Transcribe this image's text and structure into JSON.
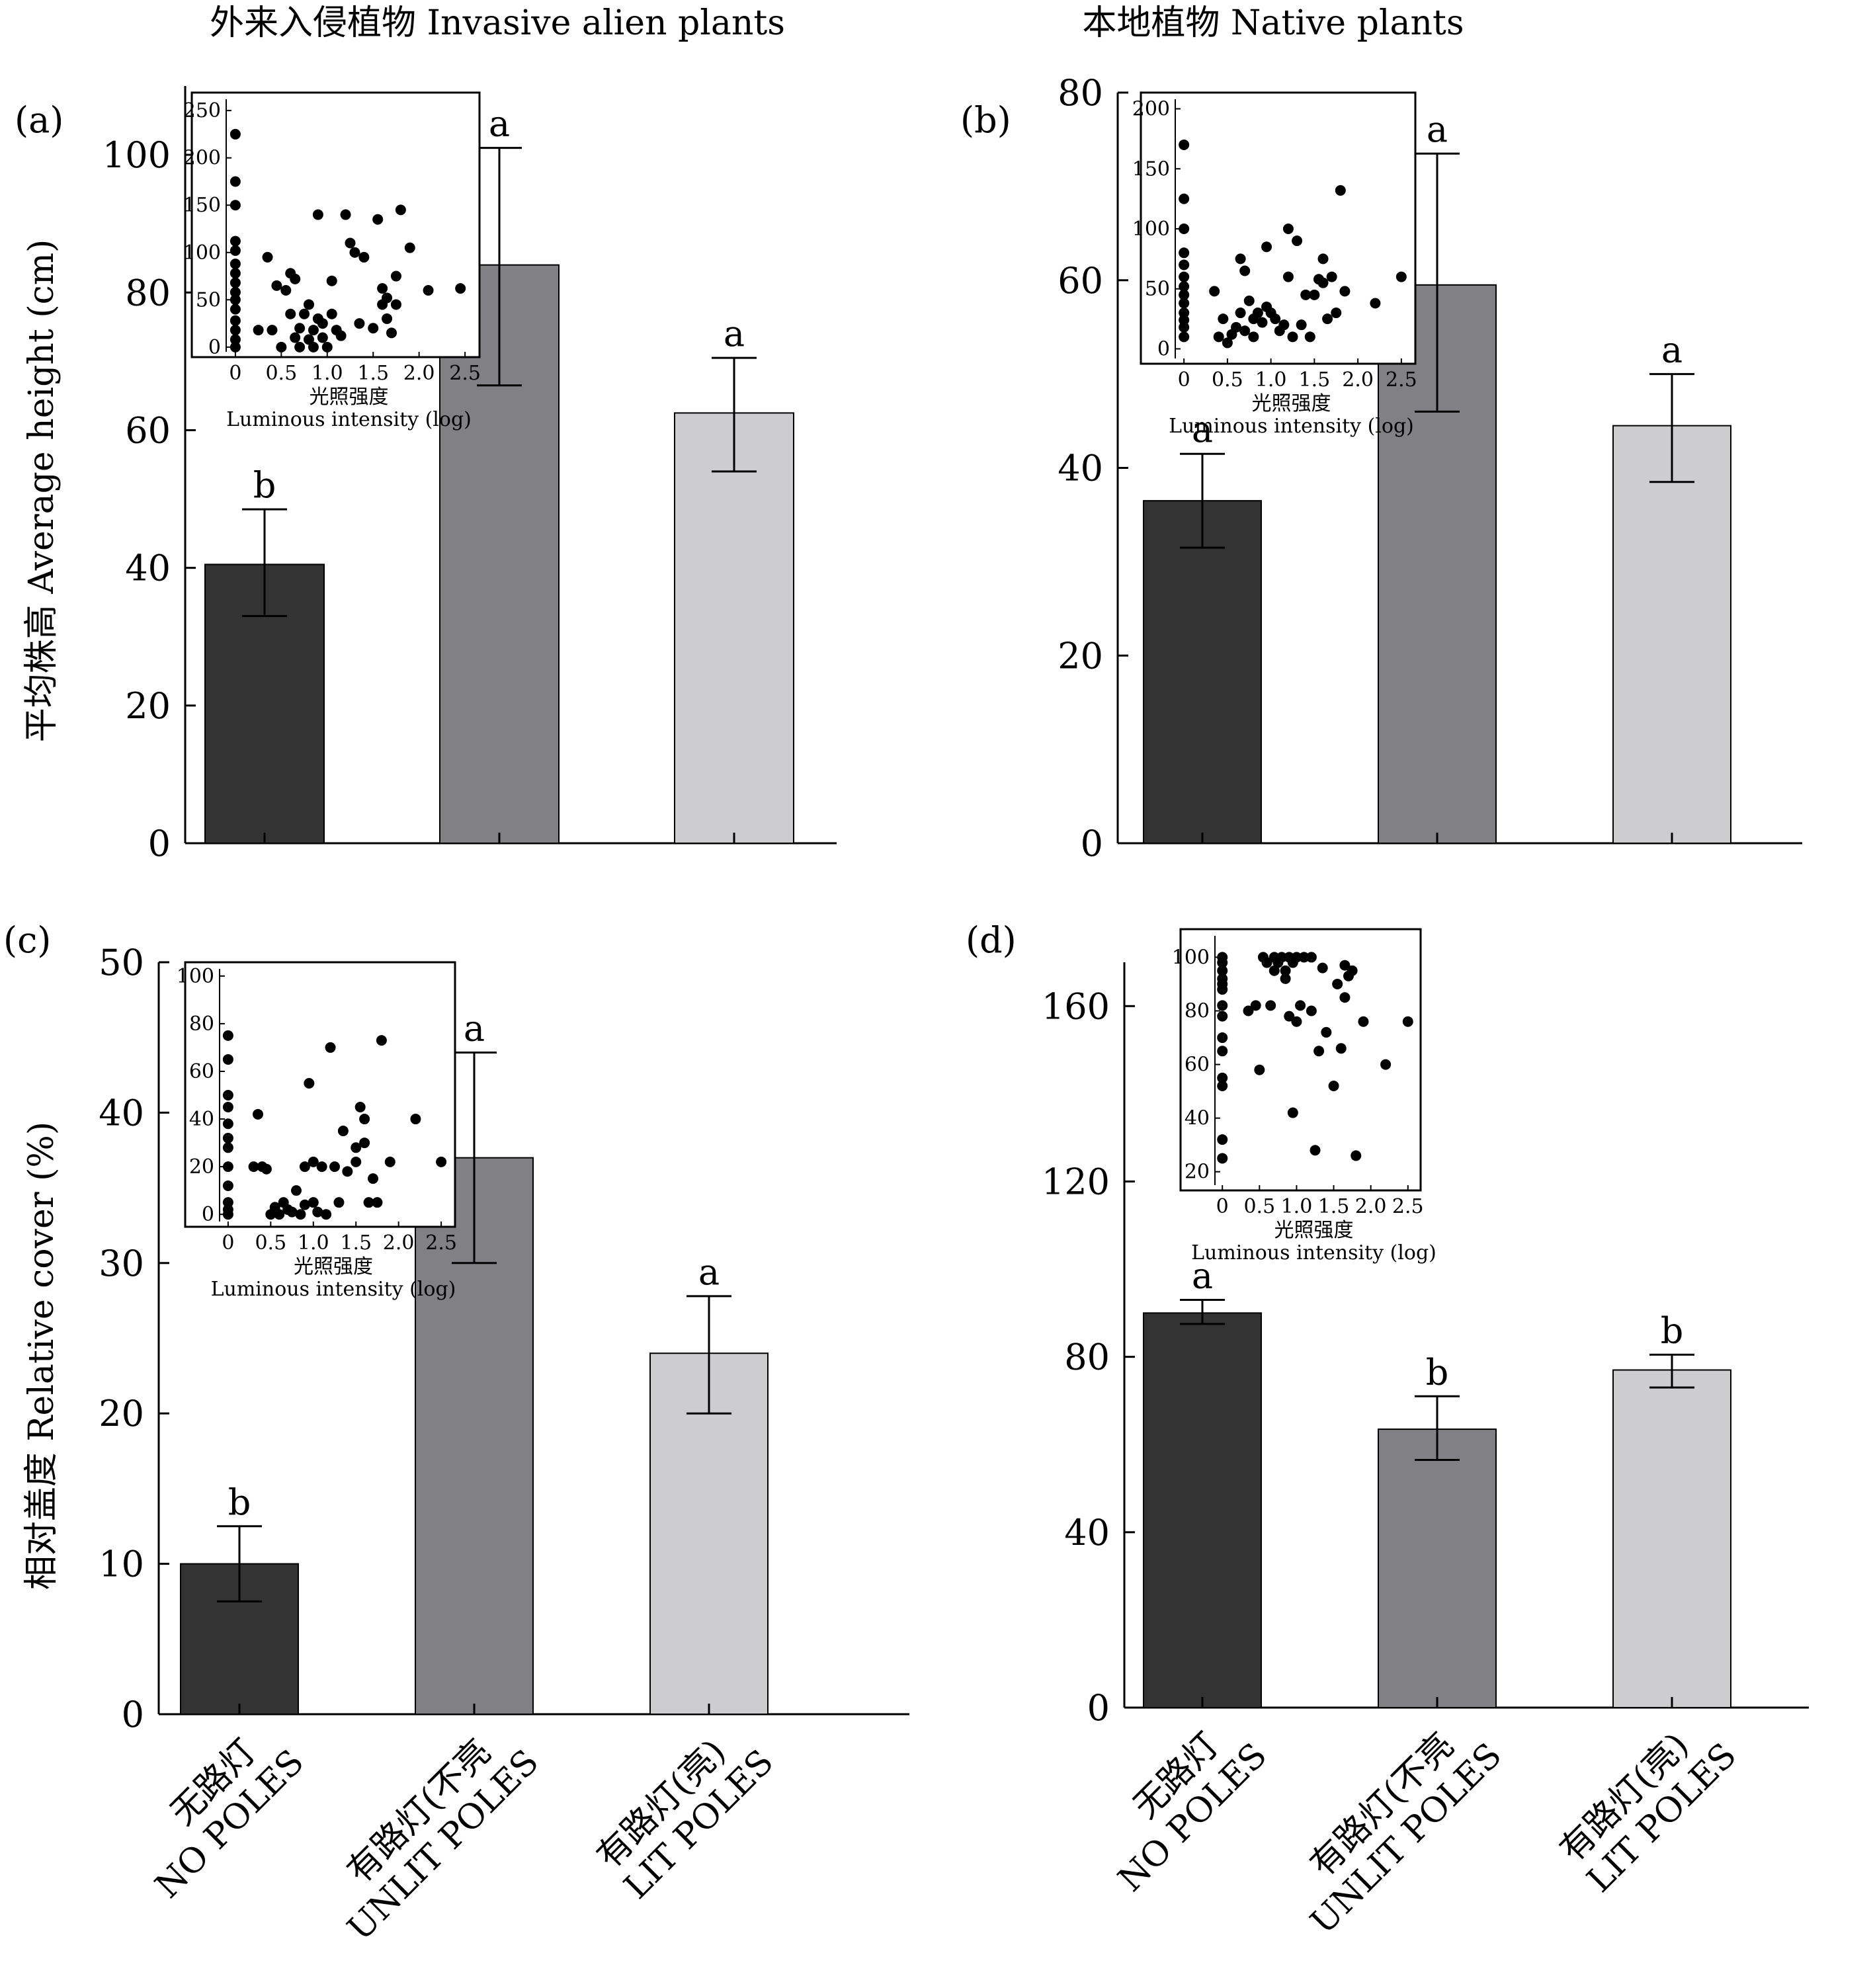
{
  "column_titles": {
    "left": "外来入侵植物 Invasive alien plants",
    "right": "本地植物 Native plants"
  },
  "y_axis_titles": {
    "top": "平均株高 Average height (cm)",
    "bottom": "相对盖度 Relative cover (%)"
  },
  "categories": [
    {
      "zh": "无路灯",
      "en": "NO POLES"
    },
    {
      "zh": "有路灯(不亮",
      "en": "UNLIT POLES"
    },
    {
      "zh": "有路灯(亮)",
      "en": "LIT POLES"
    }
  ],
  "colors": {
    "no_poles": "#333333",
    "unlit_poles": "#808085",
    "lit_poles": "#cdcdcf"
  },
  "chart_data": [
    {
      "panel": "(a)",
      "type": "bar",
      "ylim": [
        0,
        110
      ],
      "yticks": [
        0,
        20,
        40,
        60,
        80,
        100
      ],
      "values": [
        40.5,
        84,
        62.5
      ],
      "err_low": [
        33,
        66.5,
        54
      ],
      "err_high": [
        48.5,
        101,
        70.5
      ],
      "letters": [
        "b",
        "a",
        "a"
      ],
      "inset": {
        "type": "scatter",
        "xlabel_zh": "光照强度",
        "xlabel_en": "Luminous intensity (log)",
        "xlim": [
          -0.1,
          2.6
        ],
        "ylim": [
          -5,
          262
        ],
        "xticks": [
          "0",
          "0.5",
          "1.0",
          "1.5",
          "2.0",
          "2.5"
        ],
        "yticks": [
          0,
          50,
          100,
          150,
          200,
          250
        ],
        "points": [
          [
            0,
            225
          ],
          [
            0,
            175
          ],
          [
            0,
            150
          ],
          [
            0,
            112
          ],
          [
            0,
            102
          ],
          [
            0,
            88
          ],
          [
            0,
            78
          ],
          [
            0,
            68
          ],
          [
            0,
            58
          ],
          [
            0,
            50
          ],
          [
            0,
            40
          ],
          [
            0,
            28
          ],
          [
            0,
            18
          ],
          [
            0,
            8
          ],
          [
            0,
            0
          ],
          [
            0.25,
            18
          ],
          [
            0.35,
            95
          ],
          [
            0.4,
            18
          ],
          [
            0.45,
            65
          ],
          [
            0.5,
            0
          ],
          [
            0.55,
            60
          ],
          [
            0.6,
            35
          ],
          [
            0.6,
            78
          ],
          [
            0.65,
            10
          ],
          [
            0.65,
            72
          ],
          [
            0.7,
            20
          ],
          [
            0.7,
            0
          ],
          [
            0.75,
            35
          ],
          [
            0.8,
            8
          ],
          [
            0.8,
            45
          ],
          [
            0.85,
            18
          ],
          [
            0.85,
            0
          ],
          [
            0.9,
            140
          ],
          [
            0.9,
            30
          ],
          [
            0.95,
            10
          ],
          [
            0.95,
            25
          ],
          [
            1,
            0
          ],
          [
            1.05,
            35
          ],
          [
            1.05,
            70
          ],
          [
            1.1,
            18
          ],
          [
            1.15,
            12
          ],
          [
            1.2,
            140
          ],
          [
            1.25,
            110
          ],
          [
            1.3,
            100
          ],
          [
            1.35,
            25
          ],
          [
            1.4,
            95
          ],
          [
            1.5,
            20
          ],
          [
            1.55,
            135
          ],
          [
            1.6,
            62
          ],
          [
            1.6,
            45
          ],
          [
            1.65,
            30
          ],
          [
            1.65,
            52
          ],
          [
            1.7,
            15
          ],
          [
            1.75,
            75
          ],
          [
            1.75,
            45
          ],
          [
            1.8,
            145
          ],
          [
            1.9,
            105
          ],
          [
            2.1,
            60
          ],
          [
            2.45,
            62
          ]
        ]
      }
    },
    {
      "panel": "(b)",
      "type": "bar",
      "ylim": [
        0,
        80
      ],
      "yticks": [
        0,
        20,
        40,
        60,
        80
      ],
      "values": [
        36.5,
        59.5,
        44.5
      ],
      "err_low": [
        31.5,
        46,
        38.5
      ],
      "err_high": [
        41.5,
        73.5,
        50
      ],
      "letters": [
        "a",
        "a",
        "a"
      ],
      "inset": {
        "type": "scatter",
        "xlabel_zh": "光照强度",
        "xlabel_en": "Luminous intensity (log)",
        "xlim": [
          -0.1,
          2.6
        ],
        "ylim": [
          -8,
          208
        ],
        "xticks": [
          "0",
          "0.5",
          "1.0",
          "1.5",
          "2.0",
          "2.5"
        ],
        "yticks": [
          0,
          50,
          100,
          150,
          200
        ],
        "points": [
          [
            0,
            170
          ],
          [
            0,
            125
          ],
          [
            0,
            100
          ],
          [
            0,
            80
          ],
          [
            0,
            70
          ],
          [
            0,
            60
          ],
          [
            0,
            52
          ],
          [
            0,
            45
          ],
          [
            0,
            38
          ],
          [
            0,
            30
          ],
          [
            0,
            24
          ],
          [
            0,
            18
          ],
          [
            0,
            10
          ],
          [
            0.35,
            48
          ],
          [
            0.4,
            10
          ],
          [
            0.45,
            25
          ],
          [
            0.5,
            5
          ],
          [
            0.55,
            12
          ],
          [
            0.6,
            18
          ],
          [
            0.65,
            30
          ],
          [
            0.65,
            75
          ],
          [
            0.7,
            65
          ],
          [
            0.7,
            15
          ],
          [
            0.75,
            40
          ],
          [
            0.8,
            25
          ],
          [
            0.8,
            10
          ],
          [
            0.85,
            30
          ],
          [
            0.9,
            22
          ],
          [
            0.95,
            35
          ],
          [
            0.95,
            85
          ],
          [
            1,
            30
          ],
          [
            1.05,
            25
          ],
          [
            1.1,
            15
          ],
          [
            1.15,
            20
          ],
          [
            1.2,
            60
          ],
          [
            1.2,
            100
          ],
          [
            1.25,
            10
          ],
          [
            1.3,
            90
          ],
          [
            1.35,
            20
          ],
          [
            1.4,
            45
          ],
          [
            1.45,
            10
          ],
          [
            1.5,
            45
          ],
          [
            1.55,
            58
          ],
          [
            1.6,
            55
          ],
          [
            1.6,
            75
          ],
          [
            1.65,
            25
          ],
          [
            1.7,
            60
          ],
          [
            1.75,
            30
          ],
          [
            1.8,
            132
          ],
          [
            1.85,
            48
          ],
          [
            2.2,
            38
          ],
          [
            2.5,
            60
          ]
        ]
      }
    },
    {
      "panel": "(c)",
      "type": "bar",
      "ylim": [
        0,
        50
      ],
      "yticks": [
        0,
        10,
        20,
        30,
        40,
        50
      ],
      "values": [
        10,
        37,
        24
      ],
      "err_low": [
        7.5,
        30,
        20
      ],
      "err_high": [
        12.5,
        44,
        27.8
      ],
      "letters": [
        "b",
        "a",
        "a"
      ],
      "inset": {
        "type": "scatter",
        "xlabel_zh": "光照强度",
        "xlabel_en": "Luminous intensity (log)",
        "xlim": [
          -0.1,
          2.6
        ],
        "ylim": [
          -3,
          103
        ],
        "xticks": [
          "0",
          "0.5",
          "1.0",
          "1.5",
          "2.0",
          "2.5"
        ],
        "yticks": [
          0,
          20,
          40,
          60,
          80,
          100
        ],
        "points": [
          [
            0,
            75
          ],
          [
            0,
            65
          ],
          [
            0,
            50
          ],
          [
            0,
            45
          ],
          [
            0,
            38
          ],
          [
            0,
            32
          ],
          [
            0,
            28
          ],
          [
            0,
            20
          ],
          [
            0,
            12
          ],
          [
            0,
            5
          ],
          [
            0,
            2
          ],
          [
            0,
            0
          ],
          [
            0.3,
            20
          ],
          [
            0.35,
            42
          ],
          [
            0.4,
            20
          ],
          [
            0.45,
            19
          ],
          [
            0.5,
            0
          ],
          [
            0.55,
            3
          ],
          [
            0.6,
            0
          ],
          [
            0.65,
            5
          ],
          [
            0.7,
            2
          ],
          [
            0.75,
            1
          ],
          [
            0.8,
            10
          ],
          [
            0.85,
            0
          ],
          [
            0.9,
            4
          ],
          [
            0.9,
            20
          ],
          [
            0.95,
            55
          ],
          [
            1,
            22
          ],
          [
            1,
            5
          ],
          [
            1.05,
            1
          ],
          [
            1.1,
            20
          ],
          [
            1.15,
            0
          ],
          [
            1.2,
            70
          ],
          [
            1.25,
            20
          ],
          [
            1.3,
            5
          ],
          [
            1.35,
            35
          ],
          [
            1.4,
            18
          ],
          [
            1.5,
            28
          ],
          [
            1.5,
            22
          ],
          [
            1.55,
            45
          ],
          [
            1.6,
            40
          ],
          [
            1.6,
            30
          ],
          [
            1.65,
            5
          ],
          [
            1.7,
            15
          ],
          [
            1.75,
            5
          ],
          [
            1.8,
            73
          ],
          [
            1.9,
            22
          ],
          [
            2.2,
            40
          ],
          [
            2.5,
            22
          ]
        ]
      }
    },
    {
      "panel": "(d)",
      "type": "bar",
      "ylim": [
        0,
        170
      ],
      "yticks": [
        0,
        40,
        80,
        120,
        160
      ],
      "values": [
        90,
        63.5,
        77
      ],
      "err_low": [
        87.5,
        56.5,
        73
      ],
      "err_high": [
        93,
        71,
        80.5
      ],
      "letters": [
        "a",
        "b",
        "b"
      ],
      "inset": {
        "type": "scatter",
        "xlabel_zh": "光照强度",
        "xlabel_en": "Luminous intensity (log)",
        "xlim": [
          -0.1,
          2.6
        ],
        "ylim": [
          15,
          108
        ],
        "xticks": [
          "0",
          "0.5",
          "1.0",
          "1.5",
          "2.0",
          "2.5"
        ],
        "yticks": [
          20,
          40,
          60,
          80,
          100
        ],
        "points": [
          [
            0,
            100
          ],
          [
            0,
            98
          ],
          [
            0,
            95
          ],
          [
            0,
            92
          ],
          [
            0,
            90
          ],
          [
            0,
            88
          ],
          [
            0,
            82
          ],
          [
            0,
            78
          ],
          [
            0,
            70
          ],
          [
            0,
            65
          ],
          [
            0,
            55
          ],
          [
            0,
            52
          ],
          [
            0,
            32
          ],
          [
            0,
            25
          ],
          [
            0.35,
            80
          ],
          [
            0.45,
            82
          ],
          [
            0.5,
            58
          ],
          [
            0.55,
            100
          ],
          [
            0.6,
            98
          ],
          [
            0.65,
            82
          ],
          [
            0.7,
            100
          ],
          [
            0.7,
            95
          ],
          [
            0.75,
            98
          ],
          [
            0.8,
            100
          ],
          [
            0.85,
            95
          ],
          [
            0.85,
            92
          ],
          [
            0.9,
            100
          ],
          [
            0.9,
            78
          ],
          [
            0.95,
            98
          ],
          [
            0.95,
            42
          ],
          [
            1,
            100
          ],
          [
            1,
            76
          ],
          [
            1.05,
            82
          ],
          [
            1.1,
            100
          ],
          [
            1.2,
            80
          ],
          [
            1.2,
            100
          ],
          [
            1.25,
            28
          ],
          [
            1.3,
            65
          ],
          [
            1.35,
            96
          ],
          [
            1.4,
            72
          ],
          [
            1.5,
            52
          ],
          [
            1.55,
            90
          ],
          [
            1.6,
            66
          ],
          [
            1.65,
            97
          ],
          [
            1.65,
            85
          ],
          [
            1.7,
            93
          ],
          [
            1.75,
            95
          ],
          [
            1.8,
            26
          ],
          [
            1.9,
            76
          ],
          [
            2.2,
            60
          ],
          [
            2.5,
            76
          ]
        ]
      }
    }
  ]
}
